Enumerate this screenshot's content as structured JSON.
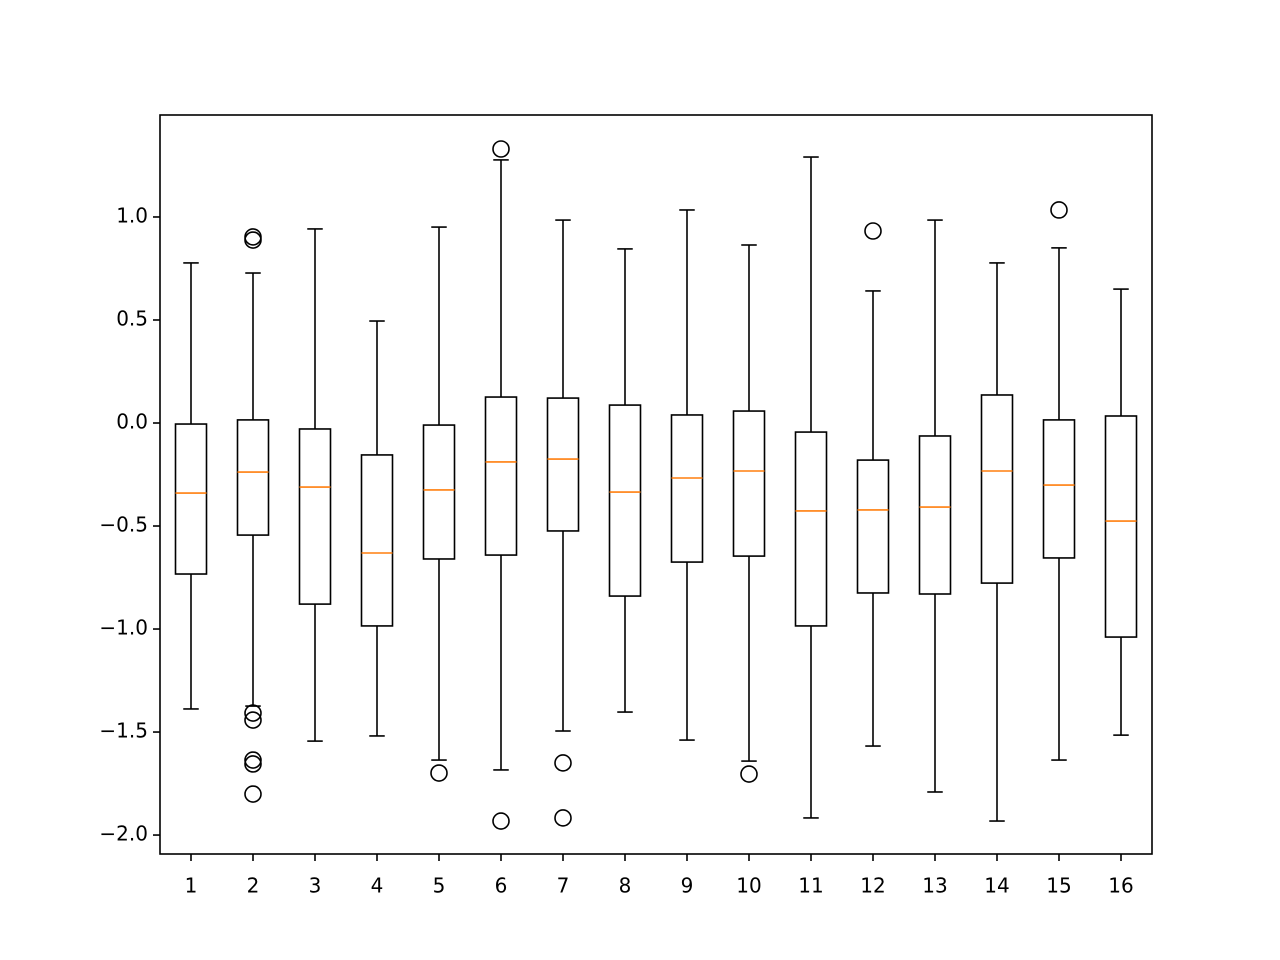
{
  "chart_data": {
    "type": "boxplot",
    "categories": [
      "1",
      "2",
      "3",
      "4",
      "5",
      "6",
      "7",
      "8",
      "9",
      "10",
      "11",
      "12",
      "13",
      "14",
      "15",
      "16"
    ],
    "boxes": [
      {
        "whisker_low": -1.388,
        "q1": -0.733,
        "median": -0.34,
        "q3": -0.005,
        "whisker_high": 0.777,
        "outliers": []
      },
      {
        "whisker_low": -1.374,
        "q1": -0.544,
        "median": -0.238,
        "q3": 0.015,
        "whisker_high": 0.728,
        "outliers": [
          0.903,
          0.888,
          -1.408,
          -1.442,
          -1.636,
          -1.655,
          -1.801
        ]
      },
      {
        "whisker_low": -1.544,
        "q1": -0.879,
        "median": -0.311,
        "q3": -0.029,
        "whisker_high": 0.942,
        "outliers": []
      },
      {
        "whisker_low": -1.519,
        "q1": -0.985,
        "median": -0.631,
        "q3": -0.155,
        "whisker_high": 0.495,
        "outliers": []
      },
      {
        "whisker_low": -1.636,
        "q1": -0.66,
        "median": -0.325,
        "q3": -0.01,
        "whisker_high": 0.951,
        "outliers": [
          -1.699
        ]
      },
      {
        "whisker_low": -1.684,
        "q1": -0.641,
        "median": -0.189,
        "q3": 0.126,
        "whisker_high": 1.277,
        "outliers": [
          1.33,
          -1.932
        ]
      },
      {
        "whisker_low": -1.495,
        "q1": -0.524,
        "median": -0.175,
        "q3": 0.121,
        "whisker_high": 0.985,
        "outliers": [
          -1.65,
          -1.917
        ]
      },
      {
        "whisker_low": -1.403,
        "q1": -0.84,
        "median": -0.335,
        "q3": 0.087,
        "whisker_high": 0.845,
        "outliers": []
      },
      {
        "whisker_low": -1.539,
        "q1": -0.675,
        "median": -0.267,
        "q3": 0.039,
        "whisker_high": 1.034,
        "outliers": []
      },
      {
        "whisker_low": -1.641,
        "q1": -0.646,
        "median": -0.233,
        "q3": 0.058,
        "whisker_high": 0.864,
        "outliers": [
          -1.704
        ]
      },
      {
        "whisker_low": -1.917,
        "q1": -0.985,
        "median": -0.427,
        "q3": -0.044,
        "whisker_high": 1.291,
        "outliers": []
      },
      {
        "whisker_low": -1.568,
        "q1": -0.825,
        "median": -0.422,
        "q3": -0.18,
        "whisker_high": 0.641,
        "outliers": [
          0.932
        ]
      },
      {
        "whisker_low": -1.791,
        "q1": -0.83,
        "median": -0.408,
        "q3": -0.063,
        "whisker_high": 0.985,
        "outliers": []
      },
      {
        "whisker_low": -1.932,
        "q1": -0.777,
        "median": -0.233,
        "q3": 0.136,
        "whisker_high": 0.777,
        "outliers": []
      },
      {
        "whisker_low": -1.636,
        "q1": -0.655,
        "median": -0.301,
        "q3": 0.015,
        "whisker_high": 0.85,
        "outliers": [
          1.034
        ]
      },
      {
        "whisker_low": -1.515,
        "q1": -1.039,
        "median": -0.476,
        "q3": 0.034,
        "whisker_high": 0.65,
        "outliers": []
      }
    ],
    "box_color": "#000000",
    "median_color": "#ff7f0e",
    "ylim": [
      -2.092,
      1.495
    ],
    "yticks": [
      {
        "value": -2,
        "label": "−2.0"
      },
      {
        "value": -1.5,
        "label": "−1.5"
      },
      {
        "value": -1,
        "label": "−1.0"
      },
      {
        "value": -0.5,
        "label": "−0.5"
      },
      {
        "value": 0,
        "label": "0.0"
      },
      0.5,
      {
        "value": 1,
        "label": "1.0"
      }
    ],
    "grid": false
  }
}
